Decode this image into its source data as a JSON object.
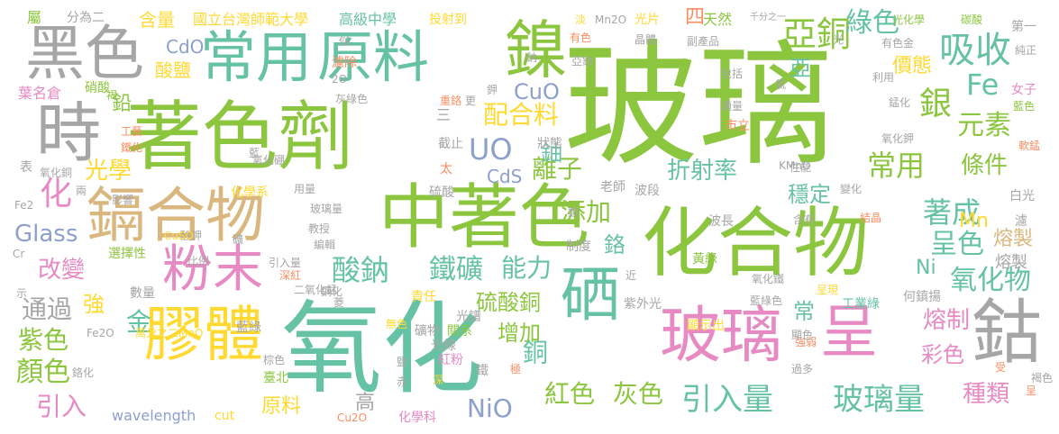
{
  "palette": {
    "green": "#8cc63f",
    "teal": "#66c2a5",
    "pink": "#e78ac3",
    "gray": "#a6a6a6",
    "yellow": "#ffd92f",
    "tan": "#d9b77f",
    "blue": "#8da0cb",
    "orange": "#fc8d62"
  },
  "words": [
    {
      "text": "玻璃",
      "color": "green"
    },
    {
      "text": "氧化",
      "color": "teal"
    },
    {
      "text": "著色劑",
      "color": "green"
    },
    {
      "text": "化合物",
      "color": "green"
    },
    {
      "text": "中著色",
      "color": "green"
    },
    {
      "text": "鎘合物",
      "color": "tan"
    },
    {
      "text": "黑色",
      "color": "gray"
    },
    {
      "text": "時",
      "color": "gray"
    },
    {
      "text": "常用",
      "color": "teal"
    },
    {
      "text": "原料",
      "color": "teal"
    },
    {
      "text": "鎳",
      "color": "green"
    },
    {
      "text": "吸收",
      "color": "teal"
    },
    {
      "text": "鈷",
      "color": "gray"
    },
    {
      "text": "膠體",
      "color": "yellow"
    },
    {
      "text": "粉末",
      "color": "pink"
    },
    {
      "text": "玻璃",
      "color": "pink"
    },
    {
      "text": "呈",
      "color": "pink"
    },
    {
      "text": "硒",
      "color": "teal"
    },
    {
      "text": "亞銅",
      "color": "green"
    },
    {
      "text": "綠色",
      "color": "teal"
    },
    {
      "text": "Fe",
      "color": "teal"
    },
    {
      "text": "銀",
      "color": "green"
    },
    {
      "text": "元素",
      "color": "green"
    },
    {
      "text": "UO",
      "color": "blue"
    },
    {
      "text": "CuO",
      "color": "blue"
    },
    {
      "text": "配合料",
      "color": "yellow"
    },
    {
      "text": "離子",
      "color": "green"
    },
    {
      "text": "常用",
      "color": "green"
    },
    {
      "text": "條件",
      "color": "green"
    },
    {
      "text": "折射率",
      "color": "teal"
    },
    {
      "text": "穩定",
      "color": "teal"
    },
    {
      "text": "添加",
      "color": "green"
    },
    {
      "text": "著成",
      "color": "teal"
    },
    {
      "text": "呈色",
      "color": "teal"
    },
    {
      "text": "熔製",
      "color": "tan"
    },
    {
      "text": "酸鈉",
      "color": "teal"
    },
    {
      "text": "鐵礦",
      "color": "teal"
    },
    {
      "text": "能力",
      "color": "teal"
    },
    {
      "text": "引入量",
      "color": "teal"
    },
    {
      "text": "玻璃量",
      "color": "teal"
    },
    {
      "text": "氧化物",
      "color": "teal"
    },
    {
      "text": "熔制",
      "color": "pink"
    },
    {
      "text": "彩色",
      "color": "pink"
    },
    {
      "text": "種類",
      "color": "pink"
    },
    {
      "text": "紅色",
      "color": "green"
    },
    {
      "text": "灰色",
      "color": "green"
    },
    {
      "text": "NiO",
      "color": "blue"
    },
    {
      "text": "Glass",
      "color": "blue"
    },
    {
      "text": "改變",
      "color": "pink"
    },
    {
      "text": "紫色",
      "color": "green"
    },
    {
      "text": "顏色",
      "color": "green"
    },
    {
      "text": "引入",
      "color": "pink"
    },
    {
      "text": "通過",
      "color": "gray"
    },
    {
      "text": "強",
      "color": "yellow"
    },
    {
      "text": "金",
      "color": "teal"
    },
    {
      "text": "化",
      "color": "pink"
    },
    {
      "text": "光學",
      "color": "yellow"
    },
    {
      "text": "鉛",
      "color": "green"
    },
    {
      "text": "Ni",
      "color": "teal"
    },
    {
      "text": "Mn",
      "color": "yellow"
    },
    {
      "text": "價態",
      "color": "yellow"
    },
    {
      "text": "硫酸銅",
      "color": "green"
    },
    {
      "text": "增加",
      "color": "green"
    },
    {
      "text": "銅",
      "color": "teal"
    },
    {
      "text": "鉻",
      "color": "teal"
    },
    {
      "text": "常",
      "color": "teal"
    },
    {
      "text": "鈾",
      "color": "teal"
    },
    {
      "text": "四",
      "color": "orange"
    },
    {
      "text": "亞",
      "color": "teal"
    },
    {
      "text": "CdO",
      "color": "blue"
    },
    {
      "text": "酸鹽",
      "color": "yellow"
    },
    {
      "text": "含量",
      "color": "yellow"
    },
    {
      "text": "CdS",
      "color": "blue"
    },
    {
      "text": "高",
      "color": "gray"
    },
    {
      "text": "原料",
      "color": "yellow"
    },
    {
      "text": "wavelength",
      "color": "blue"
    },
    {
      "text": "cut",
      "color": "yellow"
    },
    {
      "text": "國立台灣師範大學",
      "color": "yellow"
    },
    {
      "text": "高級中學",
      "color": "teal"
    },
    {
      "text": "投射到",
      "color": "yellow"
    },
    {
      "text": "光片",
      "color": "yellow"
    },
    {
      "text": "天然",
      "color": "green"
    },
    {
      "text": "光化學",
      "color": "green"
    },
    {
      "text": "碳酸",
      "color": "green"
    },
    {
      "text": "第一",
      "color": "gray"
    },
    {
      "text": "純正",
      "color": "gray"
    },
    {
      "text": "女子",
      "color": "pink"
    },
    {
      "text": "藍色",
      "color": "green"
    },
    {
      "text": "軟錳",
      "color": "orange"
    },
    {
      "text": "葉名倉",
      "color": "pink"
    },
    {
      "text": "分為二",
      "color": "gray"
    },
    {
      "text": "屬",
      "color": "green"
    },
    {
      "text": "白光",
      "color": "gray"
    },
    {
      "text": "濾",
      "color": "gray"
    },
    {
      "text": "熔製",
      "color": "gray"
    },
    {
      "text": "紫外光",
      "color": "gray"
    },
    {
      "text": "顯示出",
      "color": "yellow"
    },
    {
      "text": "工業綠",
      "color": "teal"
    },
    {
      "text": "何鎮揚",
      "color": "gray"
    },
    {
      "text": "責任",
      "color": "yellow"
    },
    {
      "text": "化學系",
      "color": "yellow"
    },
    {
      "text": "化學科",
      "color": "pink"
    },
    {
      "text": "深",
      "color": "yellow"
    },
    {
      "text": "光譜",
      "color": "gray"
    },
    {
      "text": "礦物",
      "color": "gray"
    },
    {
      "text": "關系",
      "color": "green"
    },
    {
      "text": "光線",
      "color": "gray"
    },
    {
      "text": "紅粉",
      "color": "pink"
    },
    {
      "text": "鐵",
      "color": "gray"
    },
    {
      "text": "藍綠色",
      "color": "gray"
    },
    {
      "text": "呈現",
      "color": "yellow"
    },
    {
      "text": "黃綠",
      "color": "green"
    },
    {
      "text": "波段",
      "color": "gray"
    },
    {
      "text": "波長",
      "color": "gray"
    },
    {
      "text": "老師",
      "color": "gray"
    },
    {
      "text": "制度",
      "color": "gray"
    },
    {
      "text": "硫酸",
      "color": "gray"
    },
    {
      "text": "選擇性",
      "color": "green"
    },
    {
      "text": "比例",
      "color": "gray"
    },
    {
      "text": "引入量",
      "color": "gray"
    },
    {
      "text": "數量",
      "color": "gray"
    },
    {
      "text": "萬分之二MnO",
      "color": "yellow"
    },
    {
      "text": "Fe2O",
      "color": "gray"
    },
    {
      "text": "臺北",
      "color": "green"
    },
    {
      "text": "藍綠",
      "color": "gray"
    },
    {
      "text": "教授",
      "color": "gray"
    },
    {
      "text": "編輯",
      "color": "gray"
    },
    {
      "text": "玻璃量",
      "color": "gray"
    },
    {
      "text": "工藝",
      "color": "orange"
    },
    {
      "text": "鐵化",
      "color": "orange"
    },
    {
      "text": "氧化銅",
      "color": "gray"
    },
    {
      "text": "兩",
      "color": "gray"
    },
    {
      "text": "影響",
      "color": "gray"
    },
    {
      "text": "用量",
      "color": "gray"
    },
    {
      "text": "氧化硼",
      "color": "gray"
    },
    {
      "text": "狀態",
      "color": "gray"
    },
    {
      "text": "截止",
      "color": "gray"
    },
    {
      "text": "三",
      "color": "gray"
    },
    {
      "text": "太",
      "color": "orange"
    },
    {
      "text": "硝酸",
      "color": "green"
    },
    {
      "text": "褐",
      "color": "green"
    },
    {
      "text": "似",
      "color": "gray"
    },
    {
      "text": "灰綠色",
      "color": "gray"
    },
    {
      "text": "濾除",
      "color": "orange"
    },
    {
      "text": "2O",
      "color": "gray"
    },
    {
      "text": "重鉻",
      "color": "orange"
    },
    {
      "text": "更",
      "color": "gray"
    },
    {
      "text": "鉀",
      "color": "gray"
    },
    {
      "text": "包括",
      "color": "gray"
    },
    {
      "text": "氯",
      "color": "gray"
    },
    {
      "text": "錳化",
      "color": "gray"
    },
    {
      "text": "適量",
      "color": "gray"
    },
    {
      "text": "市立",
      "color": "orange"
    },
    {
      "text": "有色",
      "color": "orange"
    },
    {
      "text": "晶體",
      "color": "gray"
    },
    {
      "text": "亞鈷",
      "color": "gray"
    },
    {
      "text": "副產品",
      "color": "gray"
    },
    {
      "text": "千分之一",
      "color": "gray"
    },
    {
      "text": "Mn2O",
      "color": "gray"
    },
    {
      "text": "淡",
      "color": "yellow"
    },
    {
      "text": "光",
      "color": "gray"
    },
    {
      "text": "有色金",
      "color": "gray"
    },
    {
      "text": "利用",
      "color": "gray"
    },
    {
      "text": "氧化鉀",
      "color": "gray"
    },
    {
      "text": "KMnO",
      "color": "gray"
    },
    {
      "text": "性能",
      "color": "gray"
    },
    {
      "text": "變化",
      "color": "gray"
    },
    {
      "text": "含有",
      "color": "gray"
    },
    {
      "text": "結晶",
      "color": "orange"
    },
    {
      "text": "氧化鐵",
      "color": "gray"
    },
    {
      "text": "強弱",
      "color": "orange"
    },
    {
      "text": "過多",
      "color": "gray"
    },
    {
      "text": "顯色",
      "color": "gray"
    },
    {
      "text": "極",
      "color": "orange"
    },
    {
      "text": "近",
      "color": "gray"
    },
    {
      "text": "類",
      "color": "gray"
    },
    {
      "text": "藍",
      "color": "gray"
    },
    {
      "text": "酸鉀",
      "color": "gray"
    },
    {
      "text": "礦",
      "color": "gray"
    },
    {
      "text": "二氧化錳",
      "color": "gray"
    },
    {
      "text": "深紅",
      "color": "orange"
    },
    {
      "text": "菱",
      "color": "gray"
    },
    {
      "text": "鋼化",
      "color": "gray"
    },
    {
      "text": "無色",
      "color": "yellow"
    },
    {
      "text": "棕色",
      "color": "gray"
    },
    {
      "text": "鹽",
      "color": "gray"
    },
    {
      "text": "赤",
      "color": "gray"
    },
    {
      "text": "Cu2O",
      "color": "orange"
    },
    {
      "text": "受",
      "color": "orange"
    },
    {
      "text": "褐色",
      "color": "gray"
    },
    {
      "text": "呈",
      "color": "orange"
    },
    {
      "text": "表",
      "color": "gray"
    },
    {
      "text": "Fe2",
      "color": "gray"
    },
    {
      "text": "Cr",
      "color": "gray"
    },
    {
      "text": "CuSO",
      "color": "yellow"
    },
    {
      "text": "示",
      "color": "gray"
    },
    {
      "text": "鉻化",
      "color": "gray"
    },
    {
      "text": "鈉",
      "color": "gray"
    }
  ]
}
